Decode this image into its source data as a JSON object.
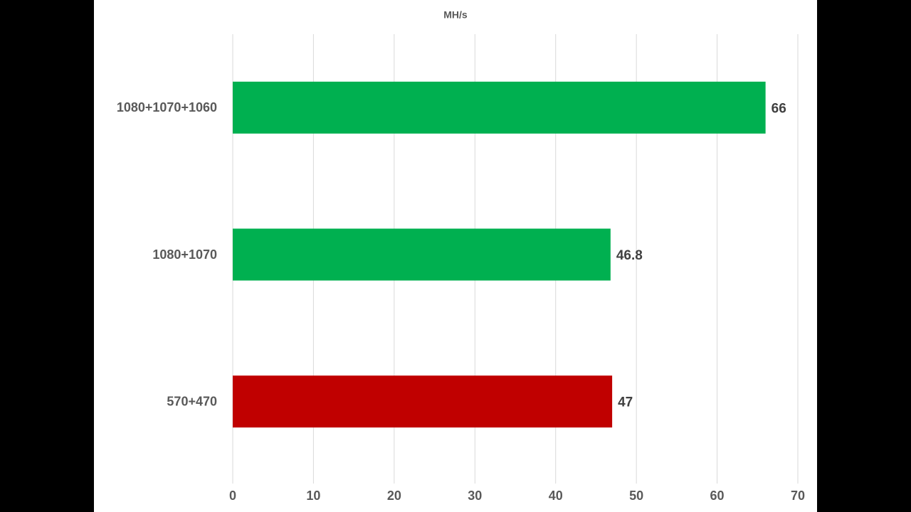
{
  "chart_data": {
    "type": "bar",
    "orientation": "horizontal",
    "title": "MH/s",
    "categories": [
      "1080+1070+1060",
      "1080+1070",
      "570+470"
    ],
    "values": [
      66,
      46.8,
      47
    ],
    "colors": [
      "#00b050",
      "#00b050",
      "#c00000"
    ],
    "xlim": [
      0,
      70
    ],
    "xticks": [
      0,
      10,
      20,
      30,
      40,
      50,
      60,
      70
    ],
    "grid": true
  }
}
